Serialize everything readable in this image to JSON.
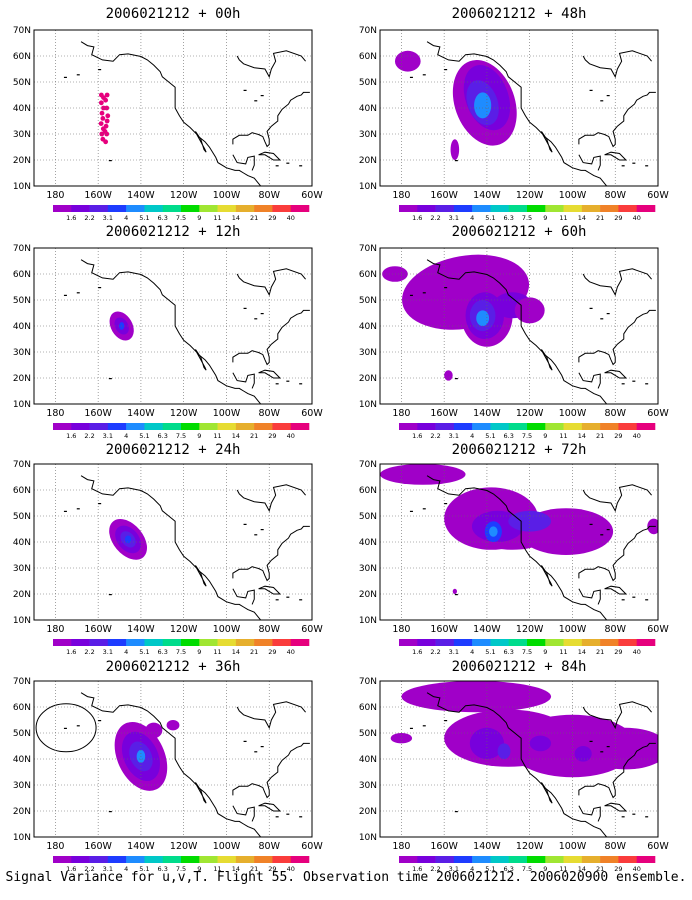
{
  "caption": "Signal Variance for u,v,T. Flight 55. Observation time 2006021212. 2006020900 ensemble.",
  "axes": {
    "lat_labels": [
      "70N",
      "60N",
      "50N",
      "40N",
      "30N",
      "20N",
      "10N"
    ],
    "lon_labels": [
      "180",
      "160W",
      "140W",
      "120W",
      "100W",
      "80W",
      "60W"
    ]
  },
  "colorbar": {
    "labels": [
      "1.6",
      "2.2",
      "3.1",
      "4",
      "5.1",
      "6.3",
      "7.5",
      "9",
      "11",
      "14",
      "21",
      "29",
      "40"
    ],
    "colors": [
      "#a000c8",
      "#7800dc",
      "#5a1ee6",
      "#1e3cff",
      "#1e8cff",
      "#00c8c8",
      "#00dc8c",
      "#00dc00",
      "#a0e632",
      "#e6dc32",
      "#e6af2d",
      "#f08228",
      "#fa3c3c",
      "#e6007d"
    ]
  },
  "panels": [
    {
      "title": "2006021212 + 00h",
      "lead": "00h"
    },
    {
      "title": "2006021212 + 48h",
      "lead": "48h"
    },
    {
      "title": "2006021212 + 12h",
      "lead": "12h"
    },
    {
      "title": "2006021212 + 60h",
      "lead": "60h"
    },
    {
      "title": "2006021212 + 24h",
      "lead": "24h"
    },
    {
      "title": "2006021212 + 72h",
      "lead": "72h"
    },
    {
      "title": "2006021212 + 36h",
      "lead": "36h"
    },
    {
      "title": "2006021212 + 84h",
      "lead": "84h"
    }
  ],
  "map_extent": {
    "lon_min": -190,
    "lon_max": -60,
    "lat_min": 10,
    "lat_max": 70
  }
}
